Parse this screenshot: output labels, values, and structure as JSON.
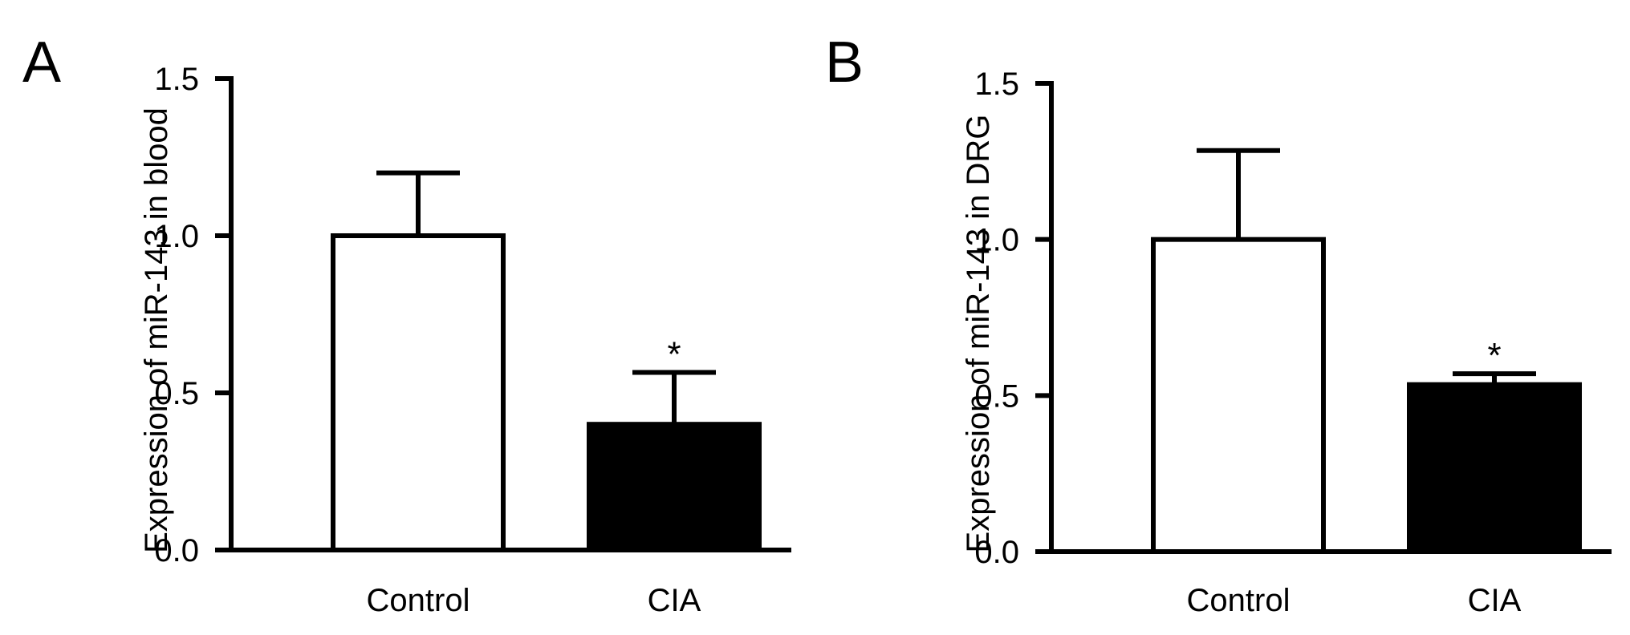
{
  "chart_data": [
    {
      "type": "bar",
      "panel_label": "A",
      "ylabel": "Expression of miR-143 in blood",
      "categories": [
        "Control",
        "CIA"
      ],
      "values": [
        1.0,
        0.4
      ],
      "errors": [
        0.2,
        0.165
      ],
      "fill_colors": [
        "#ffffff",
        "#000000"
      ],
      "significance": [
        "",
        "*"
      ],
      "ylim": [
        0,
        1.5
      ],
      "yticks": [
        "0.0",
        "0.5",
        "1.0",
        "1.5"
      ],
      "grid": false
    },
    {
      "type": "bar",
      "panel_label": "B",
      "ylabel": "Expression of miR-143 in DRG",
      "categories": [
        "Control",
        "CIA"
      ],
      "values": [
        1.0,
        0.535
      ],
      "errors": [
        0.285,
        0.035
      ],
      "fill_colors": [
        "#ffffff",
        "#000000"
      ],
      "significance": [
        "",
        "*"
      ],
      "ylim": [
        0,
        1.5
      ],
      "yticks": [
        "0.0",
        "0.5",
        "1.0",
        "1.5"
      ],
      "grid": false
    }
  ]
}
